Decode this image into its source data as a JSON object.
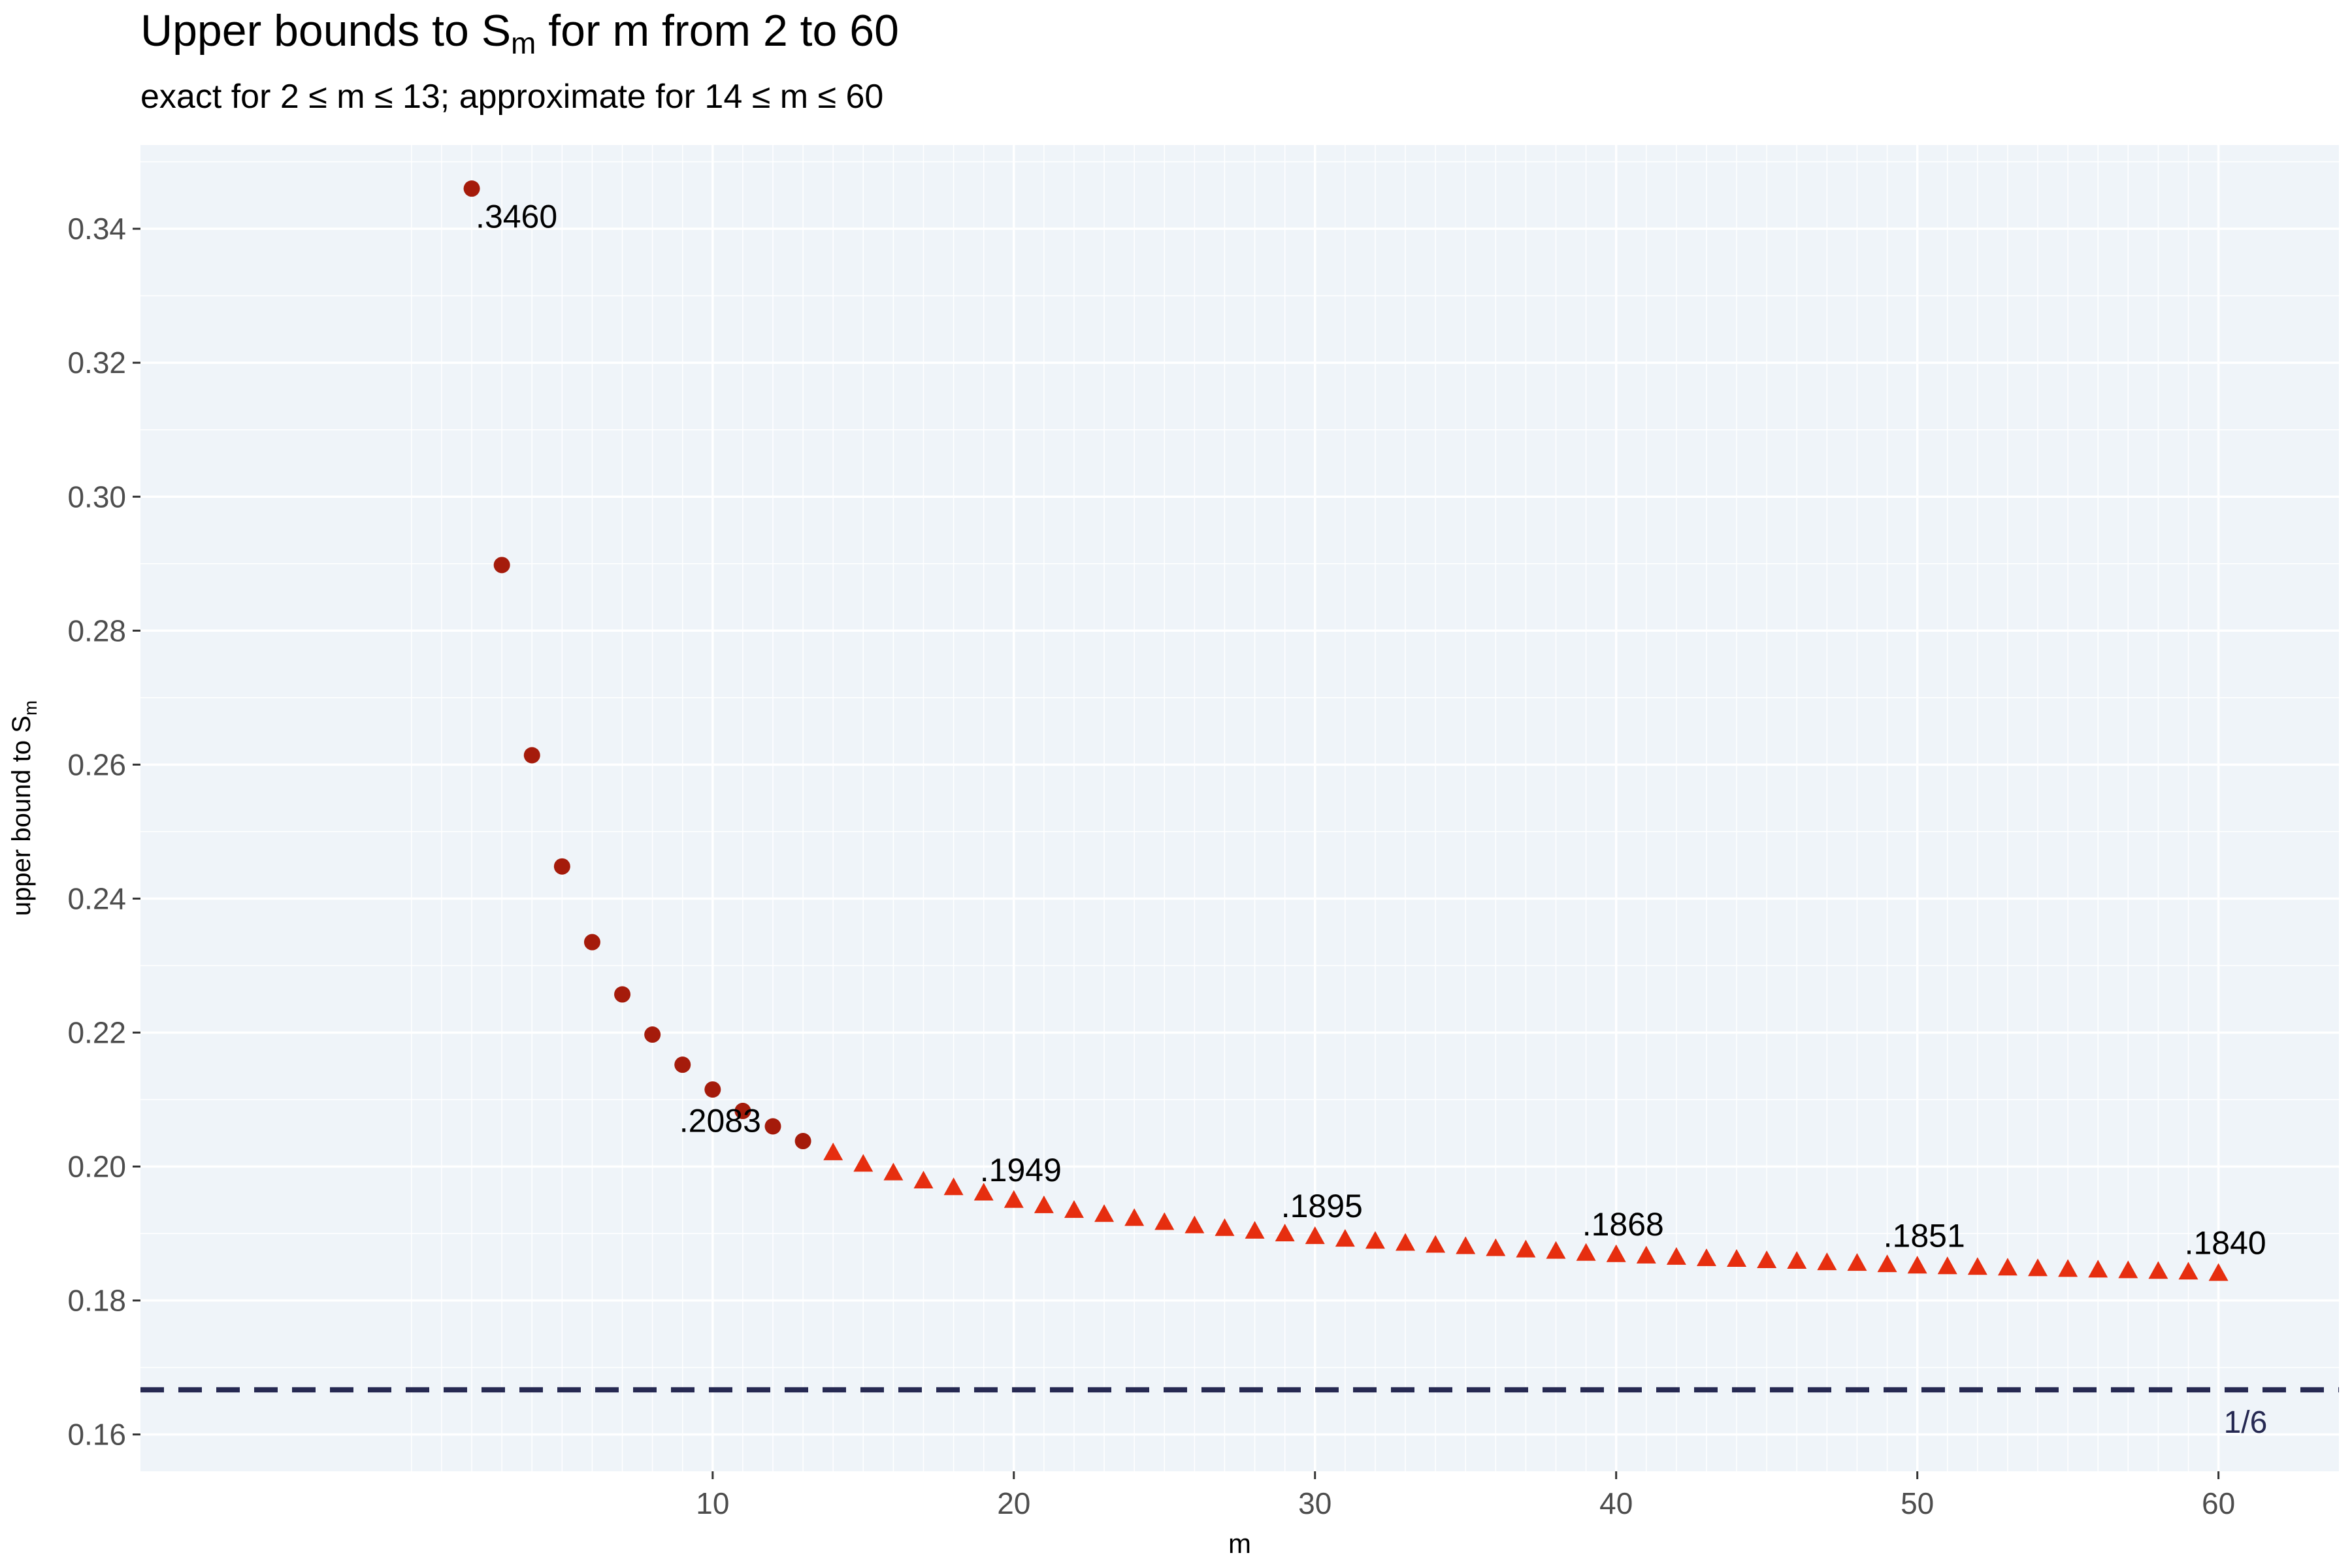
{
  "title": {
    "main": "Upper bounds to S",
    "sub": "m",
    "rest": " for m from 2 to 60"
  },
  "subtitle": "exact for 2  ≤  m  ≤  13; approximate for 14  ≤  m  ≤  60",
  "colors": {
    "panel": "#eff4f9",
    "grid": "#ffffff",
    "exact": "#a51b0b",
    "approx": "#e62e0f",
    "reference_line": "#262952",
    "axis_text": "#4d4d4d"
  },
  "chart_data": {
    "type": "scatter",
    "xlabel": "m",
    "ylabel_main": "upper bound to S",
    "ylabel_sub": "m",
    "xlim": [
      -9,
      64
    ],
    "ylim": [
      0.1545,
      0.3525
    ],
    "x_ticks": [
      10,
      20,
      30,
      40,
      50,
      60
    ],
    "y_ticks": [
      0.16,
      0.18,
      0.2,
      0.22,
      0.24,
      0.26,
      0.28,
      0.3,
      0.32,
      0.34
    ],
    "x_tick_labels": [
      "10",
      "20",
      "30",
      "40",
      "50",
      "60"
    ],
    "y_tick_labels": [
      "0.16",
      "0.18",
      "0.20",
      "0.22",
      "0.24",
      "0.26",
      "0.28",
      "0.30",
      "0.32",
      "0.34"
    ],
    "grid": true,
    "series": [
      {
        "name": "exact",
        "marker": "circle",
        "x": [
          2,
          3,
          4,
          5,
          6,
          7,
          8,
          9,
          10,
          11,
          12,
          13
        ],
        "y": [
          0.346,
          0.2898,
          0.2614,
          0.2448,
          0.2335,
          0.2257,
          0.2197,
          0.2152,
          0.2115,
          0.2083,
          0.206,
          0.2038
        ]
      },
      {
        "name": "approximate",
        "marker": "triangle",
        "x": [
          14,
          15,
          16,
          17,
          18,
          19,
          20,
          21,
          22,
          23,
          24,
          25,
          26,
          27,
          28,
          29,
          30,
          31,
          32,
          33,
          34,
          35,
          36,
          37,
          38,
          39,
          40,
          41,
          42,
          43,
          44,
          45,
          46,
          47,
          48,
          49,
          50,
          51,
          52,
          53,
          54,
          55,
          56,
          57,
          58,
          59,
          60
        ],
        "y": [
          0.202,
          0.2003,
          0.199,
          0.1978,
          0.1968,
          0.196,
          0.1949,
          0.1941,
          0.1934,
          0.1928,
          0.1922,
          0.1916,
          0.1911,
          0.1907,
          0.1903,
          0.1899,
          0.1895,
          0.1891,
          0.1888,
          0.1885,
          0.1882,
          0.188,
          0.1877,
          0.1875,
          0.1873,
          0.187,
          0.1868,
          0.1866,
          0.1864,
          0.1862,
          0.1861,
          0.1859,
          0.1858,
          0.1856,
          0.1855,
          0.1853,
          0.1851,
          0.185,
          0.1849,
          0.1848,
          0.1847,
          0.1846,
          0.1845,
          0.1844,
          0.1843,
          0.1842,
          0.184
        ]
      }
    ],
    "point_labels": [
      {
        "x": 2,
        "y": 0.346,
        "text": ".3460",
        "position": "below-right"
      },
      {
        "x": 11,
        "y": 0.2083,
        "text": ".2083",
        "position": "below-left"
      },
      {
        "x": 20,
        "y": 0.1949,
        "text": ".1949",
        "position": "above-left"
      },
      {
        "x": 30,
        "y": 0.1895,
        "text": ".1895",
        "position": "above-left"
      },
      {
        "x": 40,
        "y": 0.1868,
        "text": ".1868",
        "position": "above-left"
      },
      {
        "x": 50,
        "y": 0.1851,
        "text": ".1851",
        "position": "above-left"
      },
      {
        "x": 60,
        "y": 0.184,
        "text": ".1840",
        "position": "above-left"
      }
    ],
    "reference_line": {
      "y": 0.16667,
      "label": "1/6",
      "style": "dashed"
    }
  }
}
